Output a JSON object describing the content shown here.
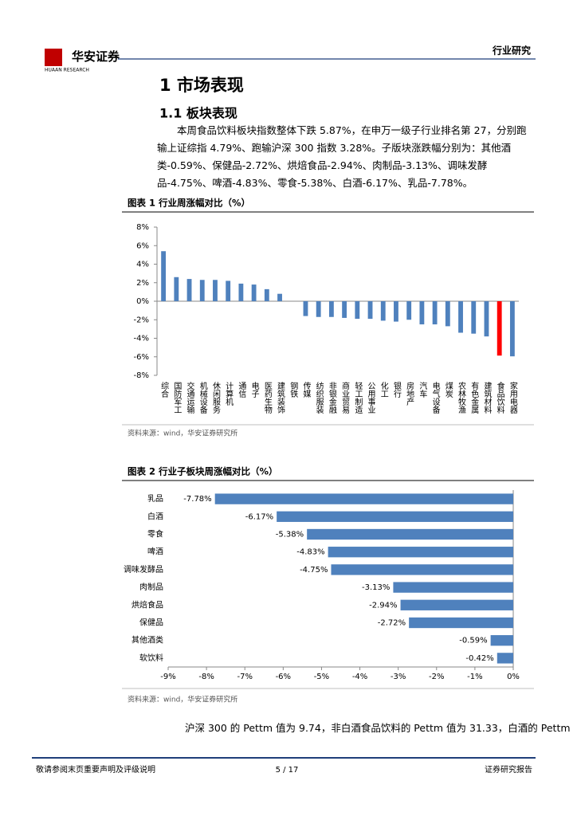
{
  "header": {
    "logo": "华安证券",
    "logo_sub": "HUAAN RESEARCH",
    "section": "行业研究"
  },
  "heading": "1 市场表现",
  "subheading": "1.1 板块表现",
  "paragraphs": [
    "本周食品饮料板块指数整体下跌 5.87%，在申万一级子行业排名第 27，分别跑输上证综指 4.79%、跑输沪深 300 指数 3.28%。子版块涨跌幅分别为：其他酒类-0.59%、保健品-2.72%、烘焙食品-2.94%、肉制品-3.13%、调味发酵品-4.75%、啤酒-4.83%、零食-5.38%、白酒-6.17%、乳品-7.78%。",
    "沪深 300 的 Pettm 值为 9.74，非白酒食品饮料的 Pettm 值为 31.33，白酒的 Pettm"
  ],
  "chart_data": [
    {
      "type": "bar",
      "title": "图表 1 行业周涨幅对比（%）",
      "source": "资料来源：wind，华安证券研究所",
      "categories": [
        "综合",
        "国防军工",
        "交通运输",
        "机械设备",
        "休闲服务",
        "计算机",
        "通信",
        "电子",
        "医药生物",
        "建筑装饰",
        "钢铁",
        "传媒",
        "纺织服装",
        "非银金融",
        "商业贸易",
        "轻工制造",
        "公用事业",
        "化工",
        "银行",
        "房地产",
        "汽车",
        "电气设备",
        "煤炭",
        "农林牧渔",
        "有色金属",
        "建筑材料",
        "食品饮料",
        "家用电器"
      ],
      "values": [
        5.4,
        2.6,
        2.4,
        2.3,
        2.3,
        2.2,
        1.9,
        1.8,
        1.3,
        0.8,
        0.0,
        -1.6,
        -1.7,
        -1.7,
        -1.8,
        -1.9,
        -1.9,
        -2.1,
        -2.2,
        -2.0,
        -2.5,
        -2.5,
        -2.7,
        -3.4,
        -3.5,
        -3.8,
        -5.87,
        -5.95
      ],
      "colors": [
        "#4f81bd",
        "#4f81bd",
        "#4f81bd",
        "#4f81bd",
        "#4f81bd",
        "#4f81bd",
        "#4f81bd",
        "#4f81bd",
        "#4f81bd",
        "#4f81bd",
        "#4f81bd",
        "#4f81bd",
        "#4f81bd",
        "#4f81bd",
        "#4f81bd",
        "#4f81bd",
        "#4f81bd",
        "#4f81bd",
        "#4f81bd",
        "#4f81bd",
        "#4f81bd",
        "#4f81bd",
        "#4f81bd",
        "#4f81bd",
        "#4f81bd",
        "#4f81bd",
        "#ff0000",
        "#4f81bd"
      ],
      "ylim": [
        -8,
        8
      ],
      "yticks": [
        {
          "value": -8,
          "label": "-8%"
        },
        {
          "value": -6,
          "label": "-6%"
        },
        {
          "value": -4,
          "label": "-4%"
        },
        {
          "value": -2,
          "label": "-2%"
        },
        {
          "value": 0,
          "label": "0%"
        },
        {
          "value": 2,
          "label": "2%"
        },
        {
          "value": 4,
          "label": "4%"
        },
        {
          "value": 6,
          "label": "6%"
        },
        {
          "value": 8,
          "label": "8%"
        }
      ],
      "grid": false
    },
    {
      "type": "barh",
      "title": "图表 2 行业子板块周涨幅对比（%）",
      "source": "资料来源：wind，华安证券研究所",
      "categories": [
        "乳品",
        "白酒",
        "零食",
        "啤酒",
        "调味发酵品",
        "肉制品",
        "烘焙食品",
        "保健品",
        "其他酒类",
        "软饮料"
      ],
      "values": [
        -7.78,
        -6.17,
        -5.38,
        -4.83,
        -4.75,
        -3.13,
        -2.94,
        -2.72,
        -0.59,
        -0.42
      ],
      "value_labels": [
        "-7.78%",
        "-6.17%",
        "-5.38%",
        "-4.83%",
        "-4.75%",
        "-3.13%",
        "-2.94%",
        "-2.72%",
        "-0.59%",
        "-0.42%"
      ],
      "color": "#4f81bd",
      "xlim": [
        -9,
        0
      ],
      "xticks": [
        {
          "value": -9,
          "label": "-9%"
        },
        {
          "value": -8,
          "label": "-8%"
        },
        {
          "value": -7,
          "label": "-7%"
        },
        {
          "value": -6,
          "label": "-6%"
        },
        {
          "value": -5,
          "label": "-5%"
        },
        {
          "value": -4,
          "label": "-4%"
        },
        {
          "value": -3,
          "label": "-3%"
        },
        {
          "value": -2,
          "label": "-2%"
        },
        {
          "value": -1,
          "label": "-1%"
        },
        {
          "value": 0,
          "label": "0%"
        }
      ],
      "grid": false
    }
  ],
  "footer": {
    "left": "敬请参阅末页重要声明及评级说明",
    "page": "5 / 17",
    "right": "证券研究报告"
  }
}
